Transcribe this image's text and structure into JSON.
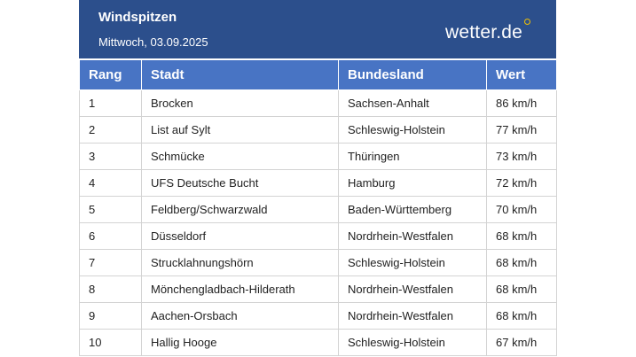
{
  "header": {
    "title": "Windspitzen",
    "date": "Mittwoch, 03.09.2025",
    "brand": "wetter.de",
    "colors": {
      "header_bg": "#2c4f8c",
      "column_header_bg": "#4874c4",
      "brand_dot": "#f2c100"
    }
  },
  "table": {
    "columns": [
      "Rang",
      "Stadt",
      "Bundesland",
      "Wert"
    ],
    "rows": [
      [
        "1",
        "Brocken",
        "Sachsen-Anhalt",
        "86 km/h"
      ],
      [
        "2",
        "List auf Sylt",
        "Schleswig-Holstein",
        "77 km/h"
      ],
      [
        "3",
        "Schmücke",
        "Thüringen",
        "73 km/h"
      ],
      [
        "4",
        "UFS Deutsche Bucht",
        "Hamburg",
        "72 km/h"
      ],
      [
        "5",
        "Feldberg/Schwarzwald",
        "Baden-Württemberg",
        "70 km/h"
      ],
      [
        "6",
        "Düsseldorf",
        "Nordrhein-Westfalen",
        "68 km/h"
      ],
      [
        "7",
        "Strucklahnungshörn",
        "Schleswig-Holstein",
        "68 km/h"
      ],
      [
        "8",
        "Mönchengladbach-Hilderath",
        "Nordrhein-Westfalen",
        "68 km/h"
      ],
      [
        "9",
        "Aachen-Orsbach",
        "Nordrhein-Westfalen",
        "68 km/h"
      ],
      [
        "10",
        "Hallig Hooge",
        "Schleswig-Holstein",
        "67 km/h"
      ]
    ]
  }
}
